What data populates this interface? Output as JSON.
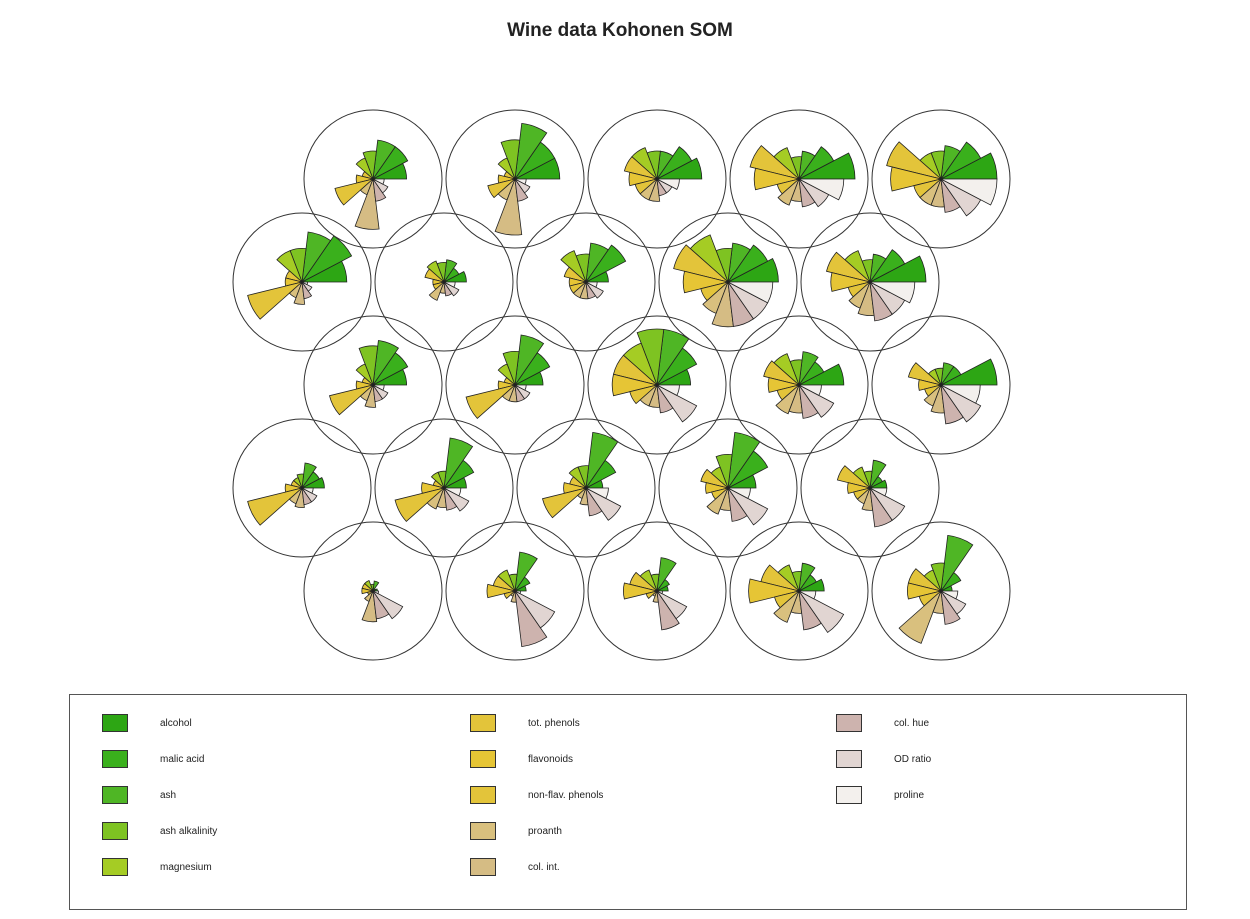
{
  "title": "Wine data Kohonen SOM",
  "chart_data": {
    "type": "segments",
    "title": "Wine data Kohonen SOM",
    "grid": {
      "rows": 5,
      "cols": 5,
      "topology": "hexagonal"
    },
    "variables": [
      {
        "name": "alcohol",
        "color": "#2da614"
      },
      {
        "name": "malic acid",
        "color": "#3ab01c"
      },
      {
        "name": "ash",
        "color": "#4fb625"
      },
      {
        "name": "ash alkalinity",
        "color": "#7ec322"
      },
      {
        "name": "magnesium",
        "color": "#a5cc24"
      },
      {
        "name": "tot. phenols",
        "color": "#e3c43a"
      },
      {
        "name": "flavonoids",
        "color": "#e6c535"
      },
      {
        "name": "non-flav. phenols",
        "color": "#e3c43a"
      },
      {
        "name": "proanth",
        "color": "#d9c07e"
      },
      {
        "name": "col. int.",
        "color": "#d5bc84"
      },
      {
        "name": "col. hue",
        "color": "#cdb3ae"
      },
      {
        "name": "OD ratio",
        "color": "#e1d5d2"
      },
      {
        "name": "proline",
        "color": "#f3f0ed"
      }
    ],
    "rows": [
      [
        [
          0.08,
          0.05,
          0.18,
          0.12,
          0.2,
          0.2,
          0.2,
          0.1,
          0.2,
          0.55,
          0.5,
          0.6,
          0.1
        ],
        [
          0.2,
          0.3,
          0.7,
          0.3,
          0.4,
          0.4,
          0.5,
          0.2,
          0.1,
          0.2,
          1.0,
          0.8,
          0.1
        ],
        [
          0.2,
          0.25,
          0.6,
          0.3,
          0.4,
          0.5,
          0.6,
          0.2,
          0.1,
          0.2,
          0.7,
          0.6,
          0.1
        ],
        [
          0.45,
          0.35,
          0.5,
          0.35,
          0.5,
          0.7,
          0.9,
          0.45,
          0.6,
          0.4,
          0.7,
          0.9,
          0.3
        ],
        [
          0.2,
          0.4,
          1.0,
          0.5,
          0.4,
          0.6,
          0.6,
          0.4,
          1.0,
          0.4,
          0.6,
          0.5,
          0.3
        ]
      ],
      [
        [
          0.4,
          0.35,
          0.45,
          0.25,
          0.2,
          0.2,
          0.3,
          1.0,
          0.3,
          0.35,
          0.3,
          0.3,
          0.2
        ],
        [
          0.4,
          0.6,
          0.9,
          0.3,
          0.3,
          0.2,
          0.4,
          0.9,
          0.4,
          0.35,
          0.4,
          0.5,
          0.3
        ],
        [
          0.3,
          0.6,
          1.0,
          0.4,
          0.4,
          0.3,
          0.4,
          0.8,
          0.2,
          0.3,
          0.5,
          0.7,
          0.4
        ],
        [
          0.5,
          0.8,
          1.0,
          0.6,
          0.4,
          0.5,
          0.4,
          0.3,
          0.5,
          0.4,
          0.6,
          0.8,
          0.4
        ],
        [
          0.3,
          0.25,
          0.5,
          0.3,
          0.4,
          0.6,
          0.4,
          0.3,
          0.3,
          0.4,
          0.7,
          0.7,
          0.3
        ]
      ],
      [
        [
          0.6,
          0.7,
          0.8,
          0.7,
          0.4,
          0.2,
          0.3,
          0.8,
          0.3,
          0.4,
          0.3,
          0.3,
          0.2
        ],
        [
          0.5,
          0.7,
          0.9,
          0.6,
          0.4,
          0.2,
          0.3,
          0.9,
          0.3,
          0.3,
          0.3,
          0.3,
          0.2
        ],
        [
          0.6,
          0.8,
          1.0,
          1.0,
          0.8,
          0.8,
          0.8,
          0.5,
          0.4,
          0.4,
          0.5,
          0.8,
          0.4
        ],
        [
          0.8,
          0.5,
          0.6,
          0.45,
          0.6,
          0.65,
          0.55,
          0.4,
          0.55,
          0.5,
          0.6,
          0.7,
          0.4
        ],
        [
          1.0,
          0.4,
          0.4,
          0.3,
          0.3,
          0.6,
          0.4,
          0.3,
          0.4,
          0.5,
          0.7,
          0.8,
          0.7
        ]
      ],
      [
        [
          0.8,
          1.0,
          0.9,
          0.6,
          0.6,
          0.3,
          0.3,
          1.0,
          0.3,
          0.4,
          0.3,
          0.2,
          0.1
        ],
        [
          0.4,
          0.3,
          0.4,
          0.35,
          0.4,
          0.35,
          0.2,
          0.2,
          0.35,
          0.2,
          0.25,
          0.3,
          0.2
        ],
        [
          0.4,
          0.8,
          0.7,
          0.5,
          0.6,
          0.4,
          0.3,
          0.3,
          0.3,
          0.3,
          0.3,
          0.35,
          0.2
        ],
        [
          0.9,
          0.8,
          0.7,
          0.6,
          0.9,
          1.0,
          0.8,
          0.5,
          0.6,
          0.8,
          0.8,
          0.8,
          0.8
        ],
        [
          1.0,
          0.7,
          0.5,
          0.4,
          0.6,
          0.8,
          0.7,
          0.4,
          0.5,
          0.6,
          0.7,
          0.7,
          0.8
        ]
      ],
      [
        [
          0.6,
          0.7,
          0.7,
          0.5,
          0.4,
          0.2,
          0.3,
          0.7,
          0.3,
          0.9,
          0.4,
          0.3,
          0.2
        ],
        [
          0.8,
          0.8,
          1.0,
          0.7,
          0.4,
          0.2,
          0.3,
          0.5,
          0.4,
          1.0,
          0.4,
          0.3,
          0.2
        ],
        [
          0.8,
          0.7,
          0.5,
          0.5,
          0.6,
          0.6,
          0.5,
          0.4,
          0.4,
          0.4,
          0.3,
          0.3,
          0.4
        ],
        [
          1.0,
          0.7,
          0.5,
          0.4,
          0.6,
          0.9,
          0.8,
          0.4,
          0.5,
          0.4,
          0.5,
          0.6,
          0.8
        ],
        [
          1.0,
          0.8,
          0.6,
          0.5,
          0.5,
          1.0,
          0.9,
          0.5,
          0.5,
          0.5,
          0.6,
          0.8,
          1.0
        ]
      ]
    ],
    "legend": "bottom"
  }
}
